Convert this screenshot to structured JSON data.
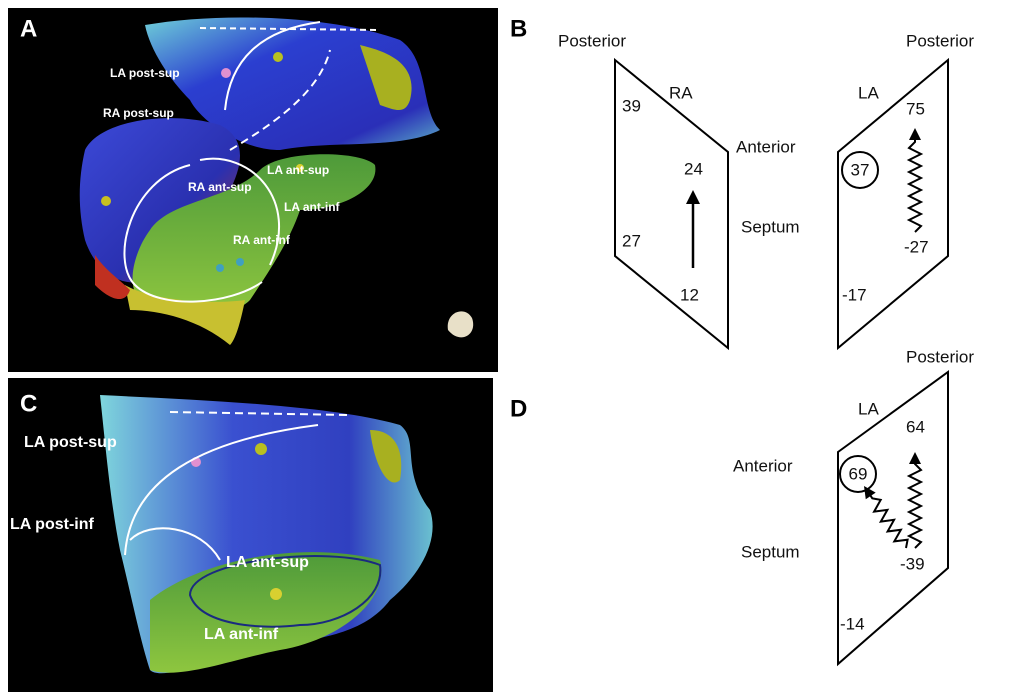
{
  "panel_a": {
    "letter": "A",
    "labels": [
      "LA post-sup",
      "RA post-sup",
      "LA ant-sup",
      "RA ant-sup",
      "LA ant-inf",
      "RA ant-inf"
    ]
  },
  "panel_b": {
    "letter": "B",
    "headers": [
      "Posterior",
      "Posterior"
    ],
    "side_labels": [
      "Anterior",
      "Septum"
    ],
    "ra": {
      "name": "RA",
      "values": [
        "39",
        "24",
        "27",
        "12"
      ]
    },
    "la": {
      "name": "LA",
      "values": [
        "75",
        "37",
        "-27",
        "-17"
      ]
    }
  },
  "panel_c": {
    "letter": "C",
    "labels": [
      "LA post-sup",
      "LA post-inf",
      "LA ant-sup",
      "LA ant-inf"
    ]
  },
  "panel_d": {
    "letter": "D",
    "header": "Posterior",
    "side_labels": [
      "Anterior",
      "Septum"
    ],
    "la": {
      "name": "LA",
      "values": [
        "64",
        "69",
        "-39",
        "-14"
      ]
    }
  }
}
